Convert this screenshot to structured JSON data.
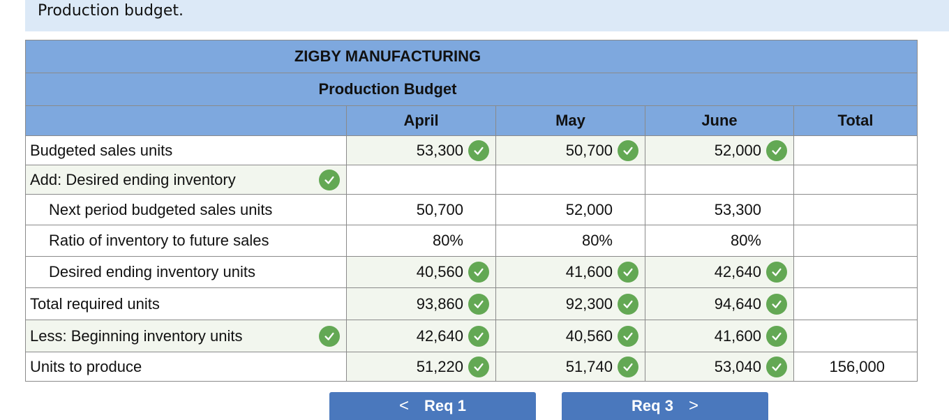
{
  "header": {
    "title": "Production budget."
  },
  "table": {
    "company": "ZIGBY MANUFACTURING",
    "budget_title": "Production Budget",
    "columns": [
      "April",
      "May",
      "June",
      "Total"
    ],
    "rows": [
      {
        "label": "Budgeted sales units",
        "indent": false,
        "label_check": false,
        "values": [
          "53,300",
          "50,700",
          "52,000",
          ""
        ],
        "checks": [
          true,
          true,
          true,
          false
        ]
      },
      {
        "label": "Add: Desired ending inventory",
        "indent": false,
        "label_check": true,
        "values": [
          "",
          "",
          "",
          ""
        ],
        "checks": [
          false,
          false,
          false,
          false
        ]
      },
      {
        "label": "Next period budgeted sales units",
        "indent": true,
        "label_check": false,
        "values": [
          "50,700",
          "52,000",
          "53,300",
          ""
        ],
        "checks": [
          false,
          false,
          false,
          false
        ]
      },
      {
        "label": "Ratio of inventory to future sales",
        "indent": true,
        "label_check": false,
        "values": [
          "80%",
          "80%",
          "80%",
          ""
        ],
        "checks": [
          false,
          false,
          false,
          false
        ]
      },
      {
        "label": "Desired ending inventory units",
        "indent": true,
        "label_check": false,
        "values": [
          "40,560",
          "41,600",
          "42,640",
          ""
        ],
        "checks": [
          true,
          true,
          true,
          false
        ]
      },
      {
        "label": "Total required units",
        "indent": false,
        "label_check": false,
        "values": [
          "93,860",
          "92,300",
          "94,640",
          ""
        ],
        "checks": [
          true,
          true,
          true,
          false
        ]
      },
      {
        "label": "Less: Beginning inventory units",
        "indent": false,
        "label_check": true,
        "values": [
          "42,640",
          "40,560",
          "41,600",
          ""
        ],
        "checks": [
          true,
          true,
          true,
          false
        ]
      },
      {
        "label": "Units to produce",
        "indent": false,
        "label_check": false,
        "values": [
          "51,220",
          "51,740",
          "53,040",
          "156,000"
        ],
        "checks": [
          true,
          true,
          true,
          false
        ]
      }
    ]
  },
  "nav": {
    "prev_label": "Req 1",
    "next_label": "Req 3",
    "prev_arrow": "<",
    "next_arrow": ">"
  },
  "colors": {
    "header_bg": "#7ea8de",
    "check_green": "#63a854",
    "button_bg": "#4a78bd",
    "banner_bg": "#dce9f7"
  }
}
